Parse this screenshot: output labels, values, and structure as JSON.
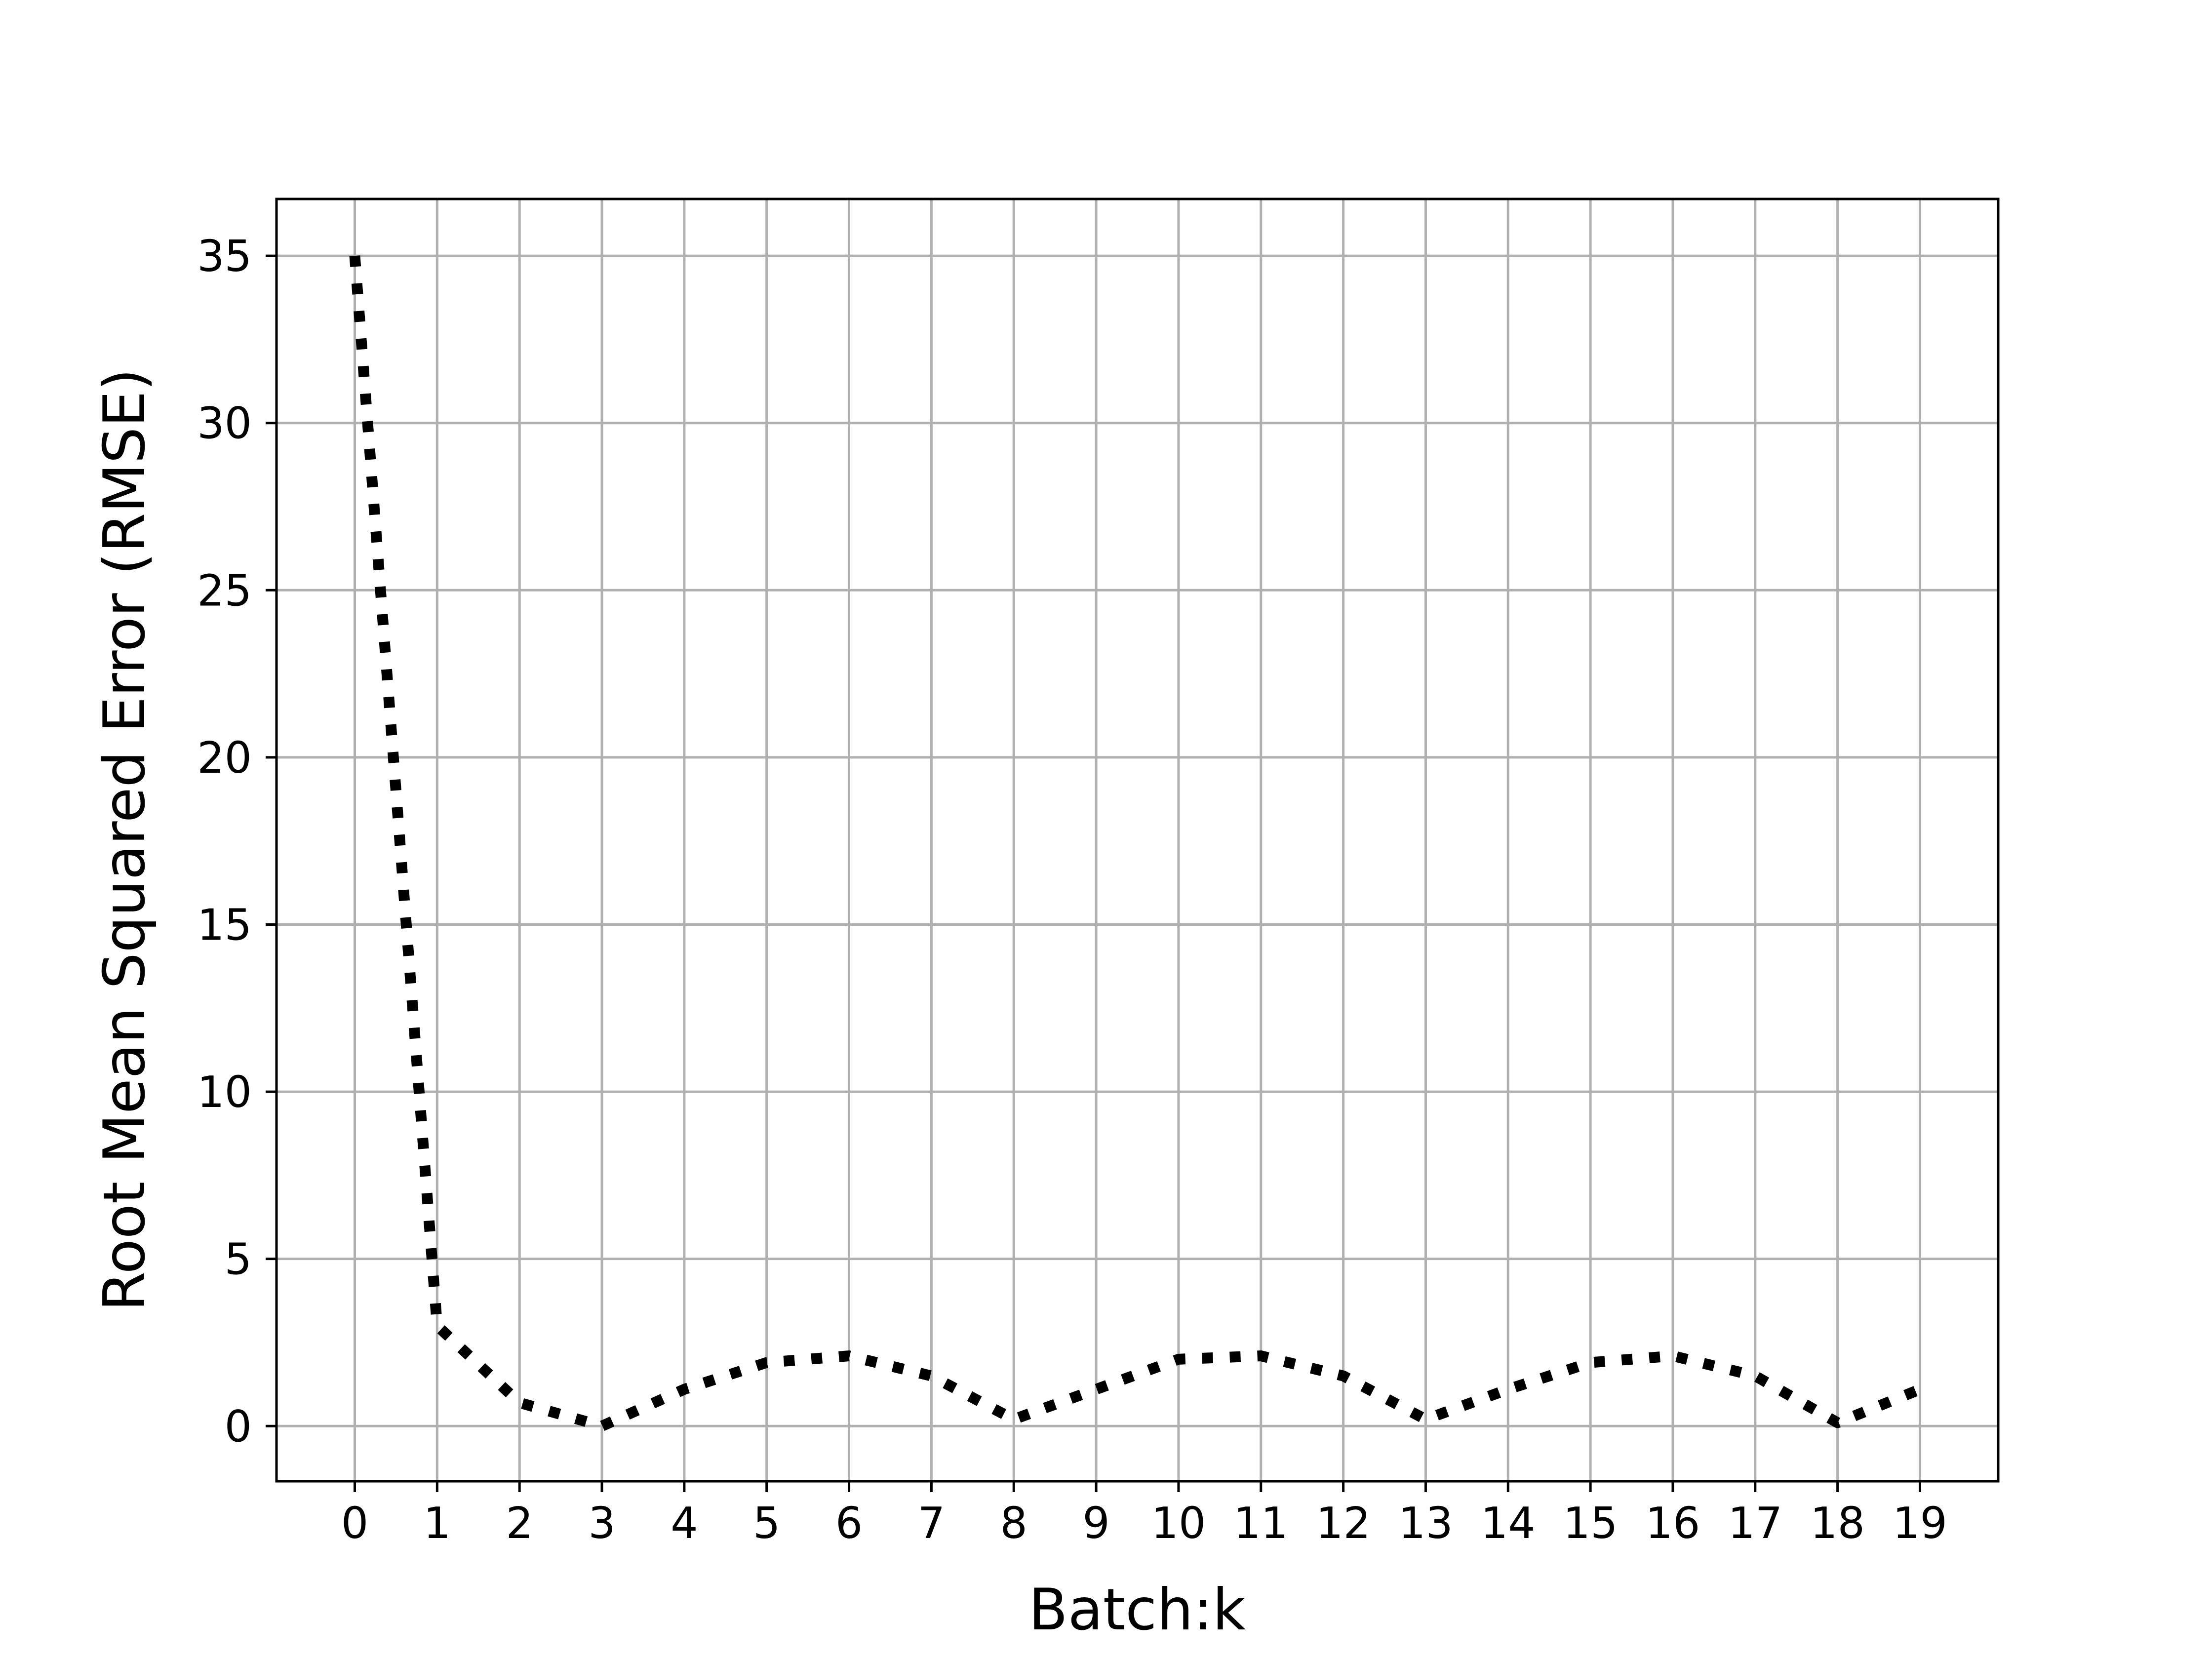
{
  "chart_data": {
    "type": "line",
    "title": "",
    "xlabel": "Batch:k",
    "ylabel": "Root Mean Squared Error (RMSE)",
    "xlim": [
      -0.95,
      19.95
    ],
    "ylim": [
      -1.65,
      36.7
    ],
    "grid": true,
    "line_style": "dotted",
    "line_color": "#000000",
    "grid_color": "#b0b0b0",
    "x_ticks": [
      0,
      1,
      2,
      3,
      4,
      5,
      6,
      7,
      8,
      9,
      10,
      11,
      12,
      13,
      14,
      15,
      16,
      17,
      18,
      19
    ],
    "y_ticks": [
      0,
      5,
      10,
      15,
      20,
      25,
      30,
      35
    ],
    "x_tick_labels": [
      "0",
      "1",
      "2",
      "3",
      "4",
      "5",
      "6",
      "7",
      "8",
      "9",
      "10",
      "11",
      "12",
      "13",
      "14",
      "15",
      "16",
      "17",
      "18",
      "19"
    ],
    "y_tick_labels": [
      "0",
      "5",
      "10",
      "15",
      "20",
      "25",
      "30",
      "35"
    ],
    "series": [
      {
        "x": [
          0,
          1,
          2,
          3,
          4,
          5,
          6,
          7,
          8,
          9,
          10,
          11,
          12,
          13,
          14,
          15,
          16,
          17,
          18,
          19
        ],
        "values": [
          35.0,
          3.0,
          0.7,
          0.0,
          1.1,
          1.9,
          2.1,
          1.5,
          0.2,
          1.1,
          2.0,
          2.1,
          1.5,
          0.2,
          1.1,
          1.9,
          2.1,
          1.5,
          0.1,
          1.1
        ]
      }
    ]
  }
}
